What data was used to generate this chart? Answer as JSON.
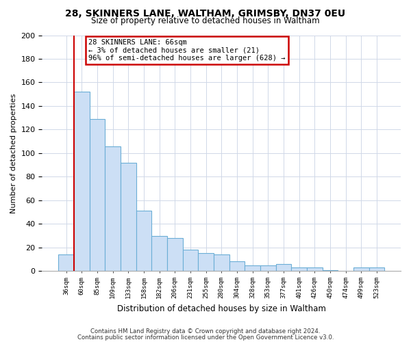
{
  "title1": "28, SKINNERS LANE, WALTHAM, GRIMSBY, DN37 0EU",
  "title2": "Size of property relative to detached houses in Waltham",
  "xlabel": "Distribution of detached houses by size in Waltham",
  "ylabel": "Number of detached properties",
  "bar_labels": [
    "36sqm",
    "60sqm",
    "85sqm",
    "109sqm",
    "133sqm",
    "158sqm",
    "182sqm",
    "206sqm",
    "231sqm",
    "255sqm",
    "280sqm",
    "304sqm",
    "328sqm",
    "353sqm",
    "377sqm",
    "401sqm",
    "426sqm",
    "450sqm",
    "474sqm",
    "499sqm",
    "523sqm"
  ],
  "bar_values": [
    14,
    152,
    129,
    106,
    92,
    51,
    30,
    28,
    18,
    15,
    14,
    8,
    5,
    5,
    6,
    3,
    3,
    1,
    0,
    3,
    3
  ],
  "bar_color": "#ccdff5",
  "bar_edge_color": "#6baed6",
  "highlight_bar_index": 1,
  "highlight_color": "#cc0000",
  "ylim": [
    0,
    200
  ],
  "yticks": [
    0,
    20,
    40,
    60,
    80,
    100,
    120,
    140,
    160,
    180,
    200
  ],
  "annotation_line1": "28 SKINNERS LANE: 66sqm",
  "annotation_line2": "← 3% of detached houses are smaller (21)",
  "annotation_line3": "96% of semi-detached houses are larger (628) →",
  "annotation_box_color": "#ffffff",
  "annotation_box_edge": "#cc0000",
  "footer1": "Contains HM Land Registry data © Crown copyright and database right 2024.",
  "footer2": "Contains public sector information licensed under the Open Government Licence v3.0.",
  "bg_color": "#ffffff",
  "grid_color": "#d0d8e8"
}
